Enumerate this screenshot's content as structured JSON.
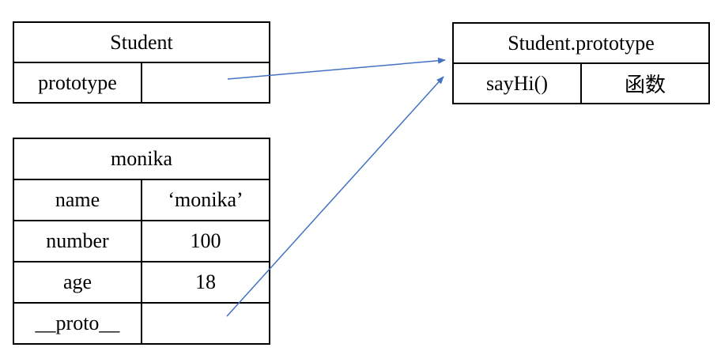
{
  "student": {
    "title": "Student",
    "rows": [
      {
        "key": "prototype",
        "value": ""
      }
    ]
  },
  "student_prototype": {
    "title": "Student.prototype",
    "rows": [
      {
        "key": "sayHi()",
        "value": "函数"
      }
    ]
  },
  "monika": {
    "title": "monika",
    "rows": [
      {
        "key": "name",
        "value": "‘monika’"
      },
      {
        "key": "number",
        "value": "100"
      },
      {
        "key": "age",
        "value": "18"
      },
      {
        "key": "__proto__",
        "value": ""
      }
    ]
  },
  "colors": {
    "arrow": "#4472C4",
    "border": "#000000"
  }
}
